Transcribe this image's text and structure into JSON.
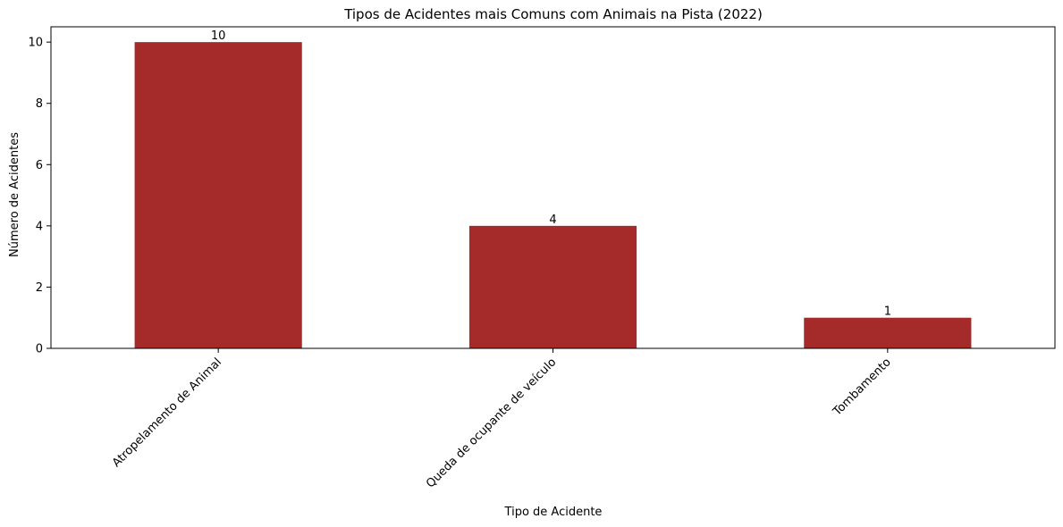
{
  "chart_data": {
    "type": "bar",
    "title": "Tipos de Acidentes mais Comuns com Animais na Pista (2022)",
    "xlabel": "Tipo de Acidente",
    "ylabel": "Número de Acidentes",
    "categories": [
      "Atropelamento de Animal",
      "Queda de ocupante de veículo",
      "Tombamento"
    ],
    "values": [
      10,
      4,
      1
    ],
    "yticks": [
      0,
      2,
      4,
      6,
      8,
      10
    ],
    "ylim": [
      0,
      10.5
    ],
    "grid": false,
    "bar_color": "#a52a2a"
  }
}
